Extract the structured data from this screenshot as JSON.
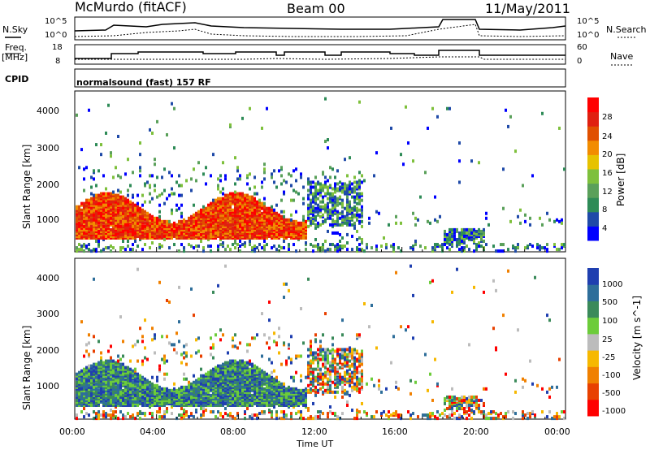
{
  "header": {
    "station": "McMurdo (fitACF)",
    "beam": "Beam 00",
    "date": "11/May/2011"
  },
  "panel_labels": {
    "nsky": "N.Sky",
    "nsearch": "N.Search",
    "freq": "Freq.",
    "freq_unit": "[MHz]",
    "nave": "Nave",
    "cpid": "CPID",
    "cpid_value": "normalsound (fast) 157 RF"
  },
  "noise_axis": {
    "left_ticks": [
      "10^5",
      "10^0"
    ],
    "right_ticks": [
      "10^5",
      "10^0"
    ]
  },
  "freq_axis": {
    "left_ticks": [
      "18",
      "8"
    ],
    "right_ticks": [
      "60",
      "0"
    ]
  },
  "colors": {
    "power_scale": [
      "#0000ff",
      "#1f4aa8",
      "#2e8b57",
      "#5aa05a",
      "#7ec03c",
      "#e6c200",
      "#f28c00",
      "#e05000",
      "#e02010",
      "#ff0000"
    ],
    "velocity_scale": [
      "#ff0000",
      "#e84000",
      "#f08000",
      "#f6b800",
      "#bcbcbc",
      "#6ccc3a",
      "#3a8a5a",
      "#2e6e9a",
      "#1f3fb0"
    ]
  },
  "chart_data": [
    {
      "type": "heatmap",
      "ylabel": "Slant Range [km]",
      "ylim": [
        180,
        4600
      ],
      "y_ticks": [
        "1000",
        "2000",
        "3000",
        "4000"
      ],
      "colorbar_label": "Power [dB]",
      "colorbar_ticks": [
        "4",
        "8",
        "12",
        "16",
        "20",
        "24",
        "28"
      ]
    },
    {
      "type": "heatmap",
      "ylabel": "Slant Range [km]",
      "ylim": [
        180,
        4600
      ],
      "y_ticks": [
        "1000",
        "2000",
        "3000",
        "4000"
      ],
      "colorbar_label": "Velocity [m s^-1]",
      "colorbar_ticks": [
        "-1000",
        "-500",
        "-100",
        "-25",
        "25",
        "100",
        "500",
        "1000"
      ]
    }
  ],
  "x_axis": {
    "label": "Time UT",
    "ticks": [
      "00:00",
      "04:00",
      "08:00",
      "12:00",
      "16:00",
      "20:00",
      "00:00"
    ]
  }
}
